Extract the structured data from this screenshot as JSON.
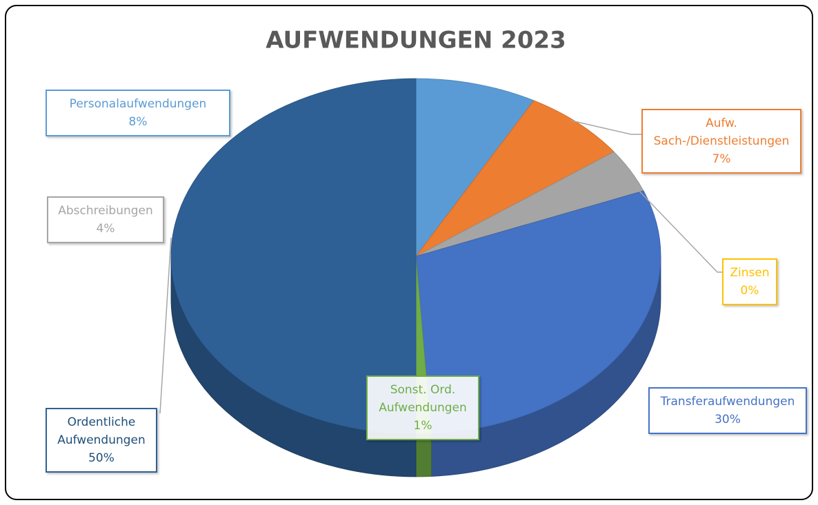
{
  "chart_data": {
    "type": "pie",
    "title": "AUFWENDUNGEN 2023",
    "categories": [
      "Personalaufwendungen",
      "Aufw. Sach-/Dienstleistungen",
      "Abschreibungen",
      "Zinsen",
      "Transferaufwendungen",
      "Sonst. Ord. Aufwendungen",
      "Ordentliche Aufwendungen"
    ],
    "values": [
      8,
      7,
      4,
      0,
      30,
      1,
      50
    ],
    "value_labels": [
      "8%",
      "7%",
      "4%",
      "0%",
      "30%",
      "1%",
      "50%"
    ],
    "colors": [
      "#5b9bd5",
      "#ed7d31",
      "#a5a5a5",
      "#ffc000",
      "#4472c4",
      "#70ad47",
      "#2e6096"
    ]
  }
}
